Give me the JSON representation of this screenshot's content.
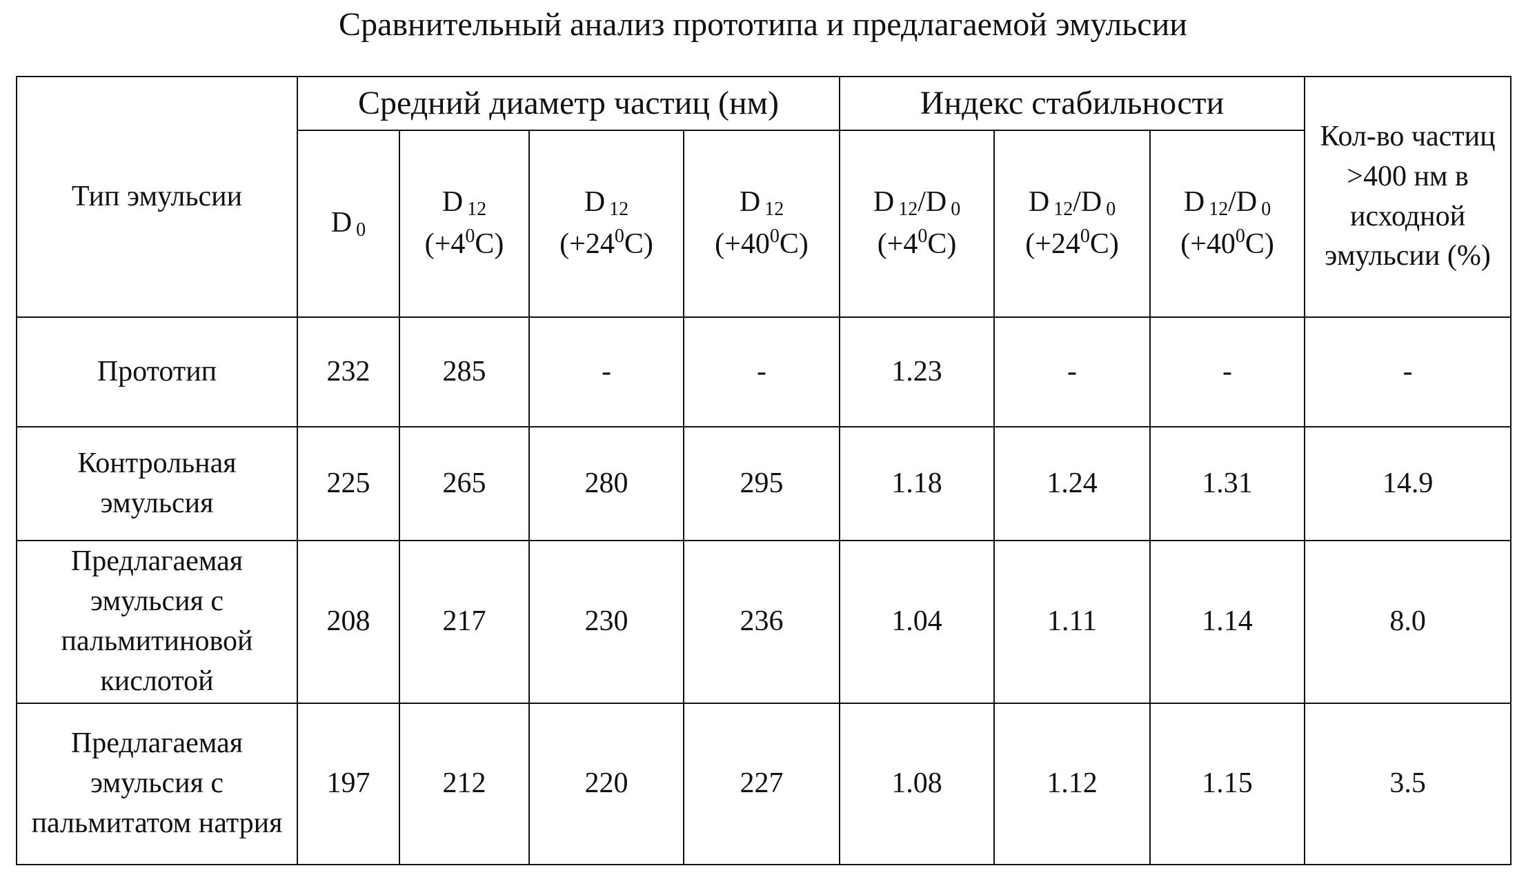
{
  "title": "Сравнительный анализ прототипа и предлагаемой эмульсии",
  "table": {
    "header": {
      "type_label": "Тип эмульсии",
      "groups": [
        "Средний диаметр частиц (нм)",
        "Индекс стабильности"
      ],
      "count_label": "Кол-во частиц >400 нм в исходной эмульсии (%)",
      "columns": [
        [
          [
            {
              "text": "D"
            },
            {
              "text": "0",
              "style": "sub"
            }
          ]
        ],
        [
          [
            {
              "text": "D"
            },
            {
              "text": "12",
              "style": "sub"
            }
          ],
          [
            {
              "text": "(+4"
            },
            {
              "text": "0",
              "style": "sup"
            },
            {
              "text": "C)"
            }
          ]
        ],
        [
          [
            {
              "text": "D"
            },
            {
              "text": "12",
              "style": "sub"
            }
          ],
          [
            {
              "text": "(+24"
            },
            {
              "text": "0",
              "style": "sup"
            },
            {
              "text": "C)"
            }
          ]
        ],
        [
          [
            {
              "text": "D"
            },
            {
              "text": "12",
              "style": "sub"
            }
          ],
          [
            {
              "text": "(+40"
            },
            {
              "text": "0",
              "style": "sup"
            },
            {
              "text": "C)"
            }
          ]
        ],
        [
          [
            {
              "text": "D"
            },
            {
              "text": "12",
              "style": "sub"
            },
            {
              "text": "/D"
            },
            {
              "text": "0",
              "style": "sub"
            }
          ],
          [
            {
              "text": "(+4"
            },
            {
              "text": "0",
              "style": "sup"
            },
            {
              "text": "C)"
            }
          ]
        ],
        [
          [
            {
              "text": "D"
            },
            {
              "text": "12",
              "style": "sub"
            },
            {
              "text": "/D"
            },
            {
              "text": "0",
              "style": "sub"
            }
          ],
          [
            {
              "text": "(+24"
            },
            {
              "text": "0",
              "style": "sup"
            },
            {
              "text": "C)"
            }
          ]
        ],
        [
          [
            {
              "text": "D"
            },
            {
              "text": "12",
              "style": "sub"
            },
            {
              "text": "/D"
            },
            {
              "text": "0",
              "style": "sub"
            }
          ],
          [
            {
              "text": "(+40"
            },
            {
              "text": "0",
              "style": "sup"
            },
            {
              "text": "C)"
            }
          ]
        ]
      ]
    },
    "rows": [
      [
        "Прототип",
        232,
        285,
        "-",
        "-",
        1.23,
        "-",
        "-",
        "-"
      ],
      [
        "Контрольная эмульсия",
        225,
        265,
        280,
        295,
        1.18,
        1.24,
        1.31,
        14.9
      ],
      [
        "Предлагаемая эмульсия с пальмитиновой кислотой",
        208,
        217,
        230,
        236,
        1.04,
        1.11,
        1.14,
        "8.0"
      ],
      [
        "Предлагаемая эмульсия с пальмитатом натрия",
        197,
        212,
        220,
        227,
        1.08,
        1.12,
        1.15,
        3.5
      ]
    ]
  }
}
